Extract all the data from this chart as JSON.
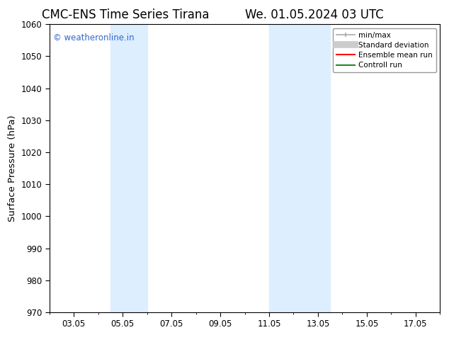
{
  "title_left": "CMC-ENS Time Series Tirana",
  "title_right": "We. 01.05.2024 03 UTC",
  "ylabel": "Surface Pressure (hPa)",
  "ylim": [
    970,
    1060
  ],
  "yticks": [
    970,
    980,
    990,
    1000,
    1010,
    1020,
    1030,
    1040,
    1050,
    1060
  ],
  "xlim": [
    1.0,
    17.0
  ],
  "xtick_positions": [
    2,
    4,
    6,
    8,
    10,
    12,
    14,
    16
  ],
  "xtick_labels": [
    "03.05",
    "05.05",
    "07.05",
    "09.05",
    "11.05",
    "13.05",
    "15.05",
    "17.05"
  ],
  "background_color": "#ffffff",
  "plot_bg_color": "#ffffff",
  "shaded_bands": [
    {
      "x_start": 3.5,
      "x_end": 5.0,
      "color": "#ddeeff"
    },
    {
      "x_start": 10.0,
      "x_end": 12.5,
      "color": "#ddeeff"
    }
  ],
  "watermark_text": "© weatheronline.in",
  "watermark_color": "#3366cc",
  "legend_entries": [
    {
      "label": "min/max",
      "color": "#aaaaaa",
      "lw": 1.5
    },
    {
      "label": "Standard deviation",
      "color": "#cccccc",
      "lw": 7
    },
    {
      "label": "Ensemble mean run",
      "color": "#ff0000",
      "lw": 1.5
    },
    {
      "label": "Controll run",
      "color": "#228822",
      "lw": 1.5
    }
  ],
  "title_fontsize": 12,
  "tick_fontsize": 8.5,
  "label_fontsize": 9.5,
  "watermark_fontsize": 8.5,
  "legend_fontsize": 7.5
}
